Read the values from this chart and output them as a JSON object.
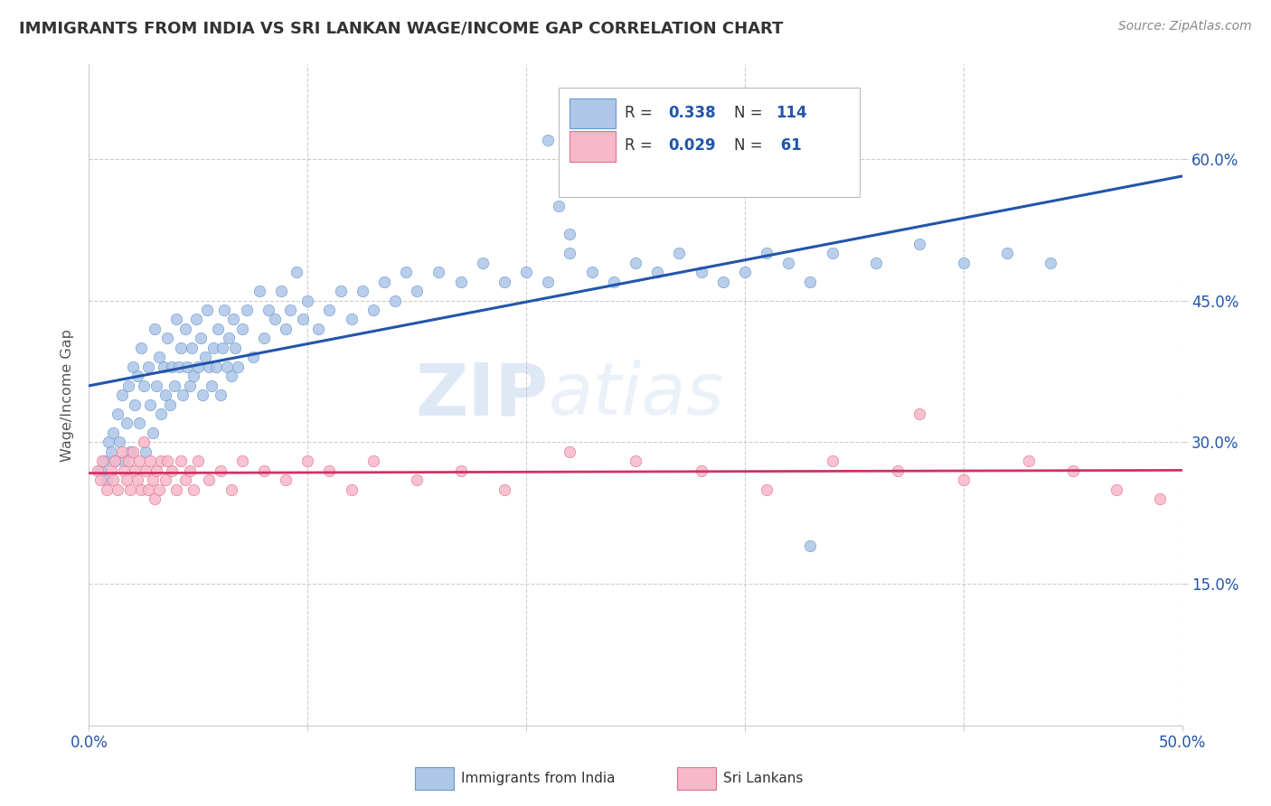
{
  "title": "IMMIGRANTS FROM INDIA VS SRI LANKAN WAGE/INCOME GAP CORRELATION CHART",
  "source": "Source: ZipAtlas.com",
  "ylabel": "Wage/Income Gap",
  "x_min": 0.0,
  "x_max": 0.5,
  "y_min": 0.0,
  "y_max": 0.7,
  "x_ticks": [
    0.0,
    0.1,
    0.2,
    0.3,
    0.4,
    0.5
  ],
  "x_tick_labels_show": [
    "0.0%",
    "",
    "",
    "",
    "",
    "50.0%"
  ],
  "y_ticks": [
    0.15,
    0.3,
    0.45,
    0.6
  ],
  "y_tick_labels": [
    "15.0%",
    "30.0%",
    "45.0%",
    "60.0%"
  ],
  "india_color": "#aec6e8",
  "india_edge_color": "#6699cc",
  "srilanka_color": "#f7b8ca",
  "srilanka_edge_color": "#e0708a",
  "india_line_color": "#2255aa",
  "srilanka_line_color": "#cc3366",
  "india_R": 0.338,
  "india_N": 114,
  "srilanka_R": 0.029,
  "srilanka_N": 61,
  "india_scatter_x": [
    0.005,
    0.007,
    0.008,
    0.009,
    0.01,
    0.011,
    0.012,
    0.013,
    0.014,
    0.015,
    0.016,
    0.017,
    0.018,
    0.019,
    0.02,
    0.021,
    0.022,
    0.023,
    0.024,
    0.025,
    0.026,
    0.027,
    0.028,
    0.029,
    0.03,
    0.031,
    0.032,
    0.033,
    0.034,
    0.035,
    0.036,
    0.037,
    0.038,
    0.039,
    0.04,
    0.041,
    0.042,
    0.043,
    0.044,
    0.045,
    0.046,
    0.047,
    0.048,
    0.049,
    0.05,
    0.051,
    0.052,
    0.053,
    0.054,
    0.055,
    0.056,
    0.057,
    0.058,
    0.059,
    0.06,
    0.061,
    0.062,
    0.063,
    0.064,
    0.065,
    0.066,
    0.067,
    0.068,
    0.07,
    0.072,
    0.075,
    0.078,
    0.08,
    0.082,
    0.085,
    0.088,
    0.09,
    0.092,
    0.095,
    0.098,
    0.1,
    0.105,
    0.11,
    0.115,
    0.12,
    0.125,
    0.13,
    0.135,
    0.14,
    0.145,
    0.15,
    0.16,
    0.17,
    0.18,
    0.19,
    0.2,
    0.21,
    0.22,
    0.23,
    0.24,
    0.25,
    0.26,
    0.27,
    0.28,
    0.29,
    0.3,
    0.31,
    0.32,
    0.33,
    0.34,
    0.36,
    0.38,
    0.4,
    0.42,
    0.44,
    0.21,
    0.215,
    0.22,
    0.33
  ],
  "india_scatter_y": [
    0.27,
    0.28,
    0.26,
    0.3,
    0.29,
    0.31,
    0.28,
    0.33,
    0.3,
    0.35,
    0.28,
    0.32,
    0.36,
    0.29,
    0.38,
    0.34,
    0.37,
    0.32,
    0.4,
    0.36,
    0.29,
    0.38,
    0.34,
    0.31,
    0.42,
    0.36,
    0.39,
    0.33,
    0.38,
    0.35,
    0.41,
    0.34,
    0.38,
    0.36,
    0.43,
    0.38,
    0.4,
    0.35,
    0.42,
    0.38,
    0.36,
    0.4,
    0.37,
    0.43,
    0.38,
    0.41,
    0.35,
    0.39,
    0.44,
    0.38,
    0.36,
    0.4,
    0.38,
    0.42,
    0.35,
    0.4,
    0.44,
    0.38,
    0.41,
    0.37,
    0.43,
    0.4,
    0.38,
    0.42,
    0.44,
    0.39,
    0.46,
    0.41,
    0.44,
    0.43,
    0.46,
    0.42,
    0.44,
    0.48,
    0.43,
    0.45,
    0.42,
    0.44,
    0.46,
    0.43,
    0.46,
    0.44,
    0.47,
    0.45,
    0.48,
    0.46,
    0.48,
    0.47,
    0.49,
    0.47,
    0.48,
    0.47,
    0.5,
    0.48,
    0.47,
    0.49,
    0.48,
    0.5,
    0.48,
    0.47,
    0.48,
    0.5,
    0.49,
    0.47,
    0.5,
    0.49,
    0.51,
    0.49,
    0.5,
    0.49,
    0.62,
    0.55,
    0.52,
    0.19
  ],
  "srilanka_scatter_x": [
    0.004,
    0.005,
    0.006,
    0.008,
    0.01,
    0.011,
    0.012,
    0.013,
    0.015,
    0.016,
    0.017,
    0.018,
    0.019,
    0.02,
    0.021,
    0.022,
    0.023,
    0.024,
    0.025,
    0.026,
    0.027,
    0.028,
    0.029,
    0.03,
    0.031,
    0.032,
    0.033,
    0.035,
    0.036,
    0.038,
    0.04,
    0.042,
    0.044,
    0.046,
    0.048,
    0.05,
    0.055,
    0.06,
    0.065,
    0.07,
    0.08,
    0.09,
    0.1,
    0.11,
    0.12,
    0.13,
    0.15,
    0.17,
    0.19,
    0.22,
    0.25,
    0.28,
    0.31,
    0.34,
    0.37,
    0.4,
    0.43,
    0.45,
    0.47,
    0.38,
    0.49
  ],
  "srilanka_scatter_y": [
    0.27,
    0.26,
    0.28,
    0.25,
    0.27,
    0.26,
    0.28,
    0.25,
    0.29,
    0.27,
    0.26,
    0.28,
    0.25,
    0.29,
    0.27,
    0.26,
    0.28,
    0.25,
    0.3,
    0.27,
    0.25,
    0.28,
    0.26,
    0.24,
    0.27,
    0.25,
    0.28,
    0.26,
    0.28,
    0.27,
    0.25,
    0.28,
    0.26,
    0.27,
    0.25,
    0.28,
    0.26,
    0.27,
    0.25,
    0.28,
    0.27,
    0.26,
    0.28,
    0.27,
    0.25,
    0.28,
    0.26,
    0.27,
    0.25,
    0.29,
    0.28,
    0.27,
    0.25,
    0.28,
    0.27,
    0.26,
    0.28,
    0.27,
    0.25,
    0.33,
    0.24
  ],
  "background_color": "#ffffff",
  "grid_color": "#cccccc",
  "watermark_text": "ZIPatlas",
  "watermark_color": "#c5d8ee",
  "title_color": "#333333",
  "source_color": "#888888",
  "ylabel_color": "#555555",
  "tick_color_x": "#555555",
  "tick_color_y_right": "#2255aa"
}
